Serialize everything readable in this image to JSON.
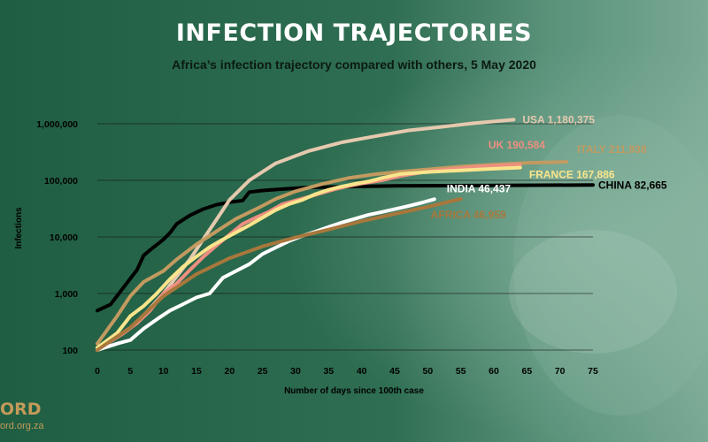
{
  "title": "INFECTION TRAJECTORIES",
  "subtitle": "Africa’s infection trajectory compared with others, 5 May 2020",
  "brand": {
    "logo_text": "ORD",
    "url": "ord.org.za"
  },
  "colors": {
    "background_dark": "#1f5e42",
    "background_light": "#6a9d86",
    "gridline": "#111111"
  },
  "chart_data": {
    "type": "line",
    "title": "INFECTION TRAJECTORIES",
    "subtitle": "Africa’s infection trajectory compared with others, 5 May 2020",
    "xlabel": "Number of days since 100th case",
    "ylabel": "Infections",
    "xlim": [
      0,
      75
    ],
    "ylim": [
      100,
      1000000
    ],
    "yscale": "log",
    "grid": "horizontal",
    "x_ticks": [
      "0",
      "5",
      "10",
      "15",
      "20",
      "25",
      "30",
      "35",
      "40",
      "45",
      "50",
      "55",
      "60",
      "65",
      "70",
      "75"
    ],
    "y_ticks": [
      {
        "value": 100,
        "label": "100"
      },
      {
        "value": 1000,
        "label": "1,000"
      },
      {
        "value": 10000,
        "label": "10,000"
      },
      {
        "value": 100000,
        "label": "100,000"
      },
      {
        "value": 1000000,
        "label": "1,000,000"
      }
    ],
    "series": [
      {
        "name": "CHINA",
        "end_label": "CHINA 82,665",
        "color": "#000000",
        "points": [
          [
            0,
            500
          ],
          [
            2,
            640
          ],
          [
            4,
            1300
          ],
          [
            6,
            2600
          ],
          [
            7,
            4700
          ],
          [
            8,
            5900
          ],
          [
            10,
            9000
          ],
          [
            11,
            11800
          ],
          [
            12,
            17000
          ],
          [
            14,
            24000
          ],
          [
            16,
            31000
          ],
          [
            18,
            37000
          ],
          [
            20,
            41000
          ],
          [
            22,
            44000
          ],
          [
            23,
            62000
          ],
          [
            25,
            66000
          ],
          [
            28,
            70000
          ],
          [
            32,
            75000
          ],
          [
            40,
            78000
          ],
          [
            45,
            80000
          ],
          [
            75,
            82665
          ]
        ]
      },
      {
        "name": "USA",
        "end_label": "USA 1,180,375",
        "color": "#e5c9ae",
        "points": [
          [
            0,
            100
          ],
          [
            6,
            300
          ],
          [
            10,
            1000
          ],
          [
            14,
            4000
          ],
          [
            16,
            9000
          ],
          [
            18,
            20000
          ],
          [
            20,
            45000
          ],
          [
            23,
            100000
          ],
          [
            27,
            200000
          ],
          [
            32,
            330000
          ],
          [
            37,
            470000
          ],
          [
            42,
            600000
          ],
          [
            47,
            760000
          ],
          [
            52,
            880000
          ],
          [
            57,
            1020000
          ],
          [
            63,
            1180375
          ]
        ]
      },
      {
        "name": "ITALY",
        "end_label": "ITALY 211,938",
        "color": "#c29a60",
        "points": [
          [
            0,
            130
          ],
          [
            3,
            400
          ],
          [
            5,
            900
          ],
          [
            7,
            1600
          ],
          [
            10,
            2500
          ],
          [
            12,
            4000
          ],
          [
            15,
            7400
          ],
          [
            18,
            12500
          ],
          [
            21,
            21000
          ],
          [
            24,
            31000
          ],
          [
            27,
            47000
          ],
          [
            30,
            64000
          ],
          [
            34,
            86000
          ],
          [
            38,
            110000
          ],
          [
            42,
            128000
          ],
          [
            46,
            143000
          ],
          [
            50,
            156000
          ],
          [
            55,
            175000
          ],
          [
            60,
            190000
          ],
          [
            65,
            203000
          ],
          [
            71,
            211938
          ]
        ]
      },
      {
        "name": "UK",
        "end_label": "UK 190,584",
        "color": "#ed8f80",
        "points": [
          [
            0,
            100
          ],
          [
            4,
            200
          ],
          [
            6,
            300
          ],
          [
            8,
            500
          ],
          [
            10,
            1000
          ],
          [
            12,
            1500
          ],
          [
            14,
            2600
          ],
          [
            16,
            4400
          ],
          [
            18,
            7000
          ],
          [
            20,
            11000
          ],
          [
            22,
            17000
          ],
          [
            24,
            22000
          ],
          [
            26,
            28000
          ],
          [
            28,
            38000
          ],
          [
            30,
            44000
          ],
          [
            32,
            51000
          ],
          [
            34,
            60000
          ],
          [
            36,
            70000
          ],
          [
            38,
            79000
          ],
          [
            40,
            88000
          ],
          [
            43,
            100000
          ],
          [
            46,
            120000
          ],
          [
            50,
            144000
          ],
          [
            54,
            160000
          ],
          [
            58,
            176000
          ],
          [
            62,
            186000
          ],
          [
            64,
            190584
          ]
        ]
      },
      {
        "name": "FRANCE",
        "end_label": "FRANCE 167,886",
        "color": "#fae58c",
        "points": [
          [
            0,
            110
          ],
          [
            3,
            200
          ],
          [
            5,
            400
          ],
          [
            7,
            600
          ],
          [
            9,
            1000
          ],
          [
            11,
            1800
          ],
          [
            13,
            3000
          ],
          [
            15,
            4500
          ],
          [
            17,
            6600
          ],
          [
            19,
            9000
          ],
          [
            21,
            12000
          ],
          [
            23,
            16000
          ],
          [
            25,
            22000
          ],
          [
            27,
            30000
          ],
          [
            29,
            38000
          ],
          [
            31,
            45000
          ],
          [
            33,
            57000
          ],
          [
            35,
            68000
          ],
          [
            37,
            78000
          ],
          [
            39,
            87000
          ],
          [
            41,
            95000
          ],
          [
            43,
            110000
          ],
          [
            46,
            130000
          ],
          [
            50,
            140000
          ],
          [
            55,
            150000
          ],
          [
            60,
            160000
          ],
          [
            64,
            167886
          ]
        ]
      },
      {
        "name": "INDIA",
        "end_label": "INDIA 46,437",
        "color": "#ffffff",
        "points": [
          [
            0,
            100
          ],
          [
            3,
            130
          ],
          [
            5,
            150
          ],
          [
            7,
            240
          ],
          [
            9,
            350
          ],
          [
            11,
            500
          ],
          [
            13,
            650
          ],
          [
            15,
            850
          ],
          [
            17,
            1000
          ],
          [
            19,
            1900
          ],
          [
            21,
            2500
          ],
          [
            23,
            3300
          ],
          [
            25,
            5000
          ],
          [
            27,
            6500
          ],
          [
            29,
            8400
          ],
          [
            31,
            10400
          ],
          [
            33,
            12400
          ],
          [
            35,
            15000
          ],
          [
            37,
            18000
          ],
          [
            39,
            21000
          ],
          [
            41,
            24500
          ],
          [
            43,
            27500
          ],
          [
            45,
            31000
          ],
          [
            47,
            35000
          ],
          [
            49,
            40000
          ],
          [
            51,
            46437
          ]
        ]
      },
      {
        "name": "AFRICA",
        "end_label": "AFRICA 46,959",
        "color": "#a8773c",
        "points": [
          [
            0,
            100
          ],
          [
            5,
            250
          ],
          [
            10,
            900
          ],
          [
            15,
            2200
          ],
          [
            20,
            4200
          ],
          [
            25,
            6800
          ],
          [
            30,
            9800
          ],
          [
            35,
            13500
          ],
          [
            40,
            19000
          ],
          [
            45,
            25500
          ],
          [
            50,
            34000
          ],
          [
            55,
            46959
          ]
        ]
      }
    ]
  }
}
